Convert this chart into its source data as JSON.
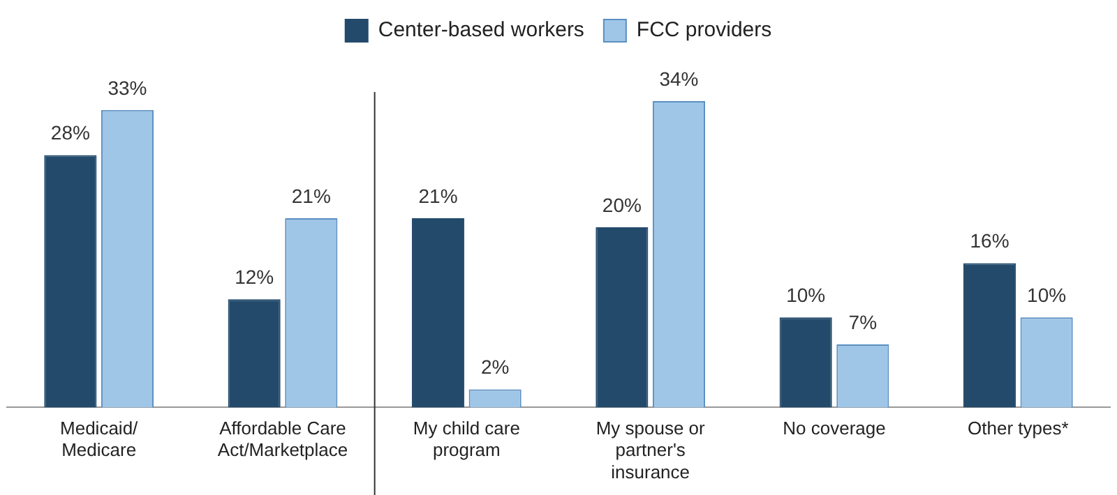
{
  "chart_data": {
    "type": "bar",
    "categories": [
      "Medicaid/ Medicare",
      "Affordable Care Act/Marketplace",
      "My child care program",
      "My spouse or partner's insurance",
      "No coverage",
      "Other types*"
    ],
    "series": [
      {
        "name": "Center-based workers",
        "color": "#234a6b",
        "values": [
          28,
          12,
          21,
          20,
          10,
          16
        ],
        "value_labels": [
          "28%",
          "12%",
          "21%",
          "20%",
          "10%",
          "16%"
        ]
      },
      {
        "name": "FCC providers",
        "color": "#9fc6e7",
        "values": [
          33,
          21,
          2,
          34,
          7,
          10
        ],
        "value_labels": [
          "33%",
          "21%",
          "2%",
          "34%",
          "7%",
          "10%"
        ]
      }
    ],
    "tick_labels": "x",
    "grid": false,
    "legend": "top"
  }
}
